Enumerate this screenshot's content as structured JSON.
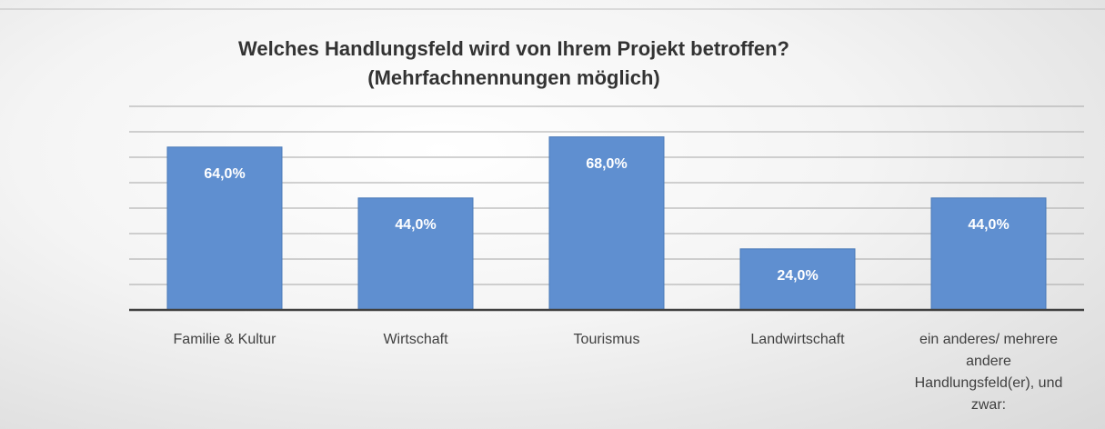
{
  "chart_data": {
    "type": "bar",
    "title": [
      "Welches Handlungsfeld wird von Ihrem Projekt betroffen?",
      "(Mehrfachnennungen möglich)"
    ],
    "categories": [
      "Familie & Kultur",
      "Wirtschaft",
      "Tourismus",
      "Landwirtschaft",
      "ein anderes/ mehrere andere Handlungsfeld(er), und zwar:"
    ],
    "values": [
      64,
      44,
      68,
      24,
      44
    ],
    "value_labels": [
      "64,0%",
      "44,0%",
      "68,0%",
      "24,0%",
      "44,0%"
    ],
    "color": "#5f8fd0",
    "ylim": [
      0,
      80
    ],
    "yticks": [
      0,
      10,
      20,
      30,
      40,
      50,
      60,
      70,
      80
    ],
    "grid": true
  }
}
